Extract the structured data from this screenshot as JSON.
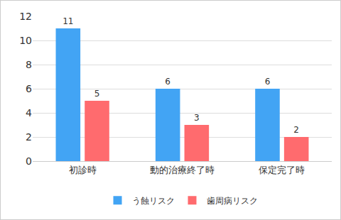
{
  "chart_data": {
    "type": "bar",
    "categories": [
      "初診時",
      "動的治療終了時",
      "保定完了時"
    ],
    "series": [
      {
        "name": "う蝕リスク",
        "color": "#42a4f4",
        "values": [
          11,
          6,
          6
        ]
      },
      {
        "name": "歯周病リスク",
        "color": "#ff6b6e",
        "values": [
          5,
          3,
          2
        ]
      }
    ],
    "ylim": [
      0,
      12
    ],
    "yticks": [
      0,
      2,
      4,
      6,
      8,
      10,
      12
    ],
    "grid": true,
    "legend": "bottom",
    "data_labels": true
  }
}
